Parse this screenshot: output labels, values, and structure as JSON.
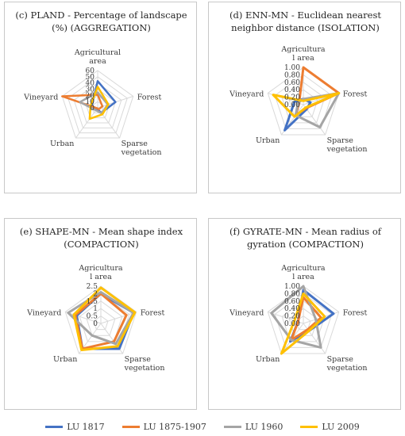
{
  "legend": [
    {
      "label": "LU 1817",
      "color": "#4472c4"
    },
    {
      "label": "LU 1875-1907",
      "color": "#ed7d31"
    },
    {
      "label": "LU 1960",
      "color": "#a5a5a5"
    },
    {
      "label": "LU 2009",
      "color": "#ffc000"
    }
  ],
  "chart_data": [
    {
      "type": "radar",
      "title": "(c) PLAND - Percentage of landscape (%) (AGGREGATION)",
      "categories": [
        "Agricultural area",
        "Forest",
        "Sparse vegetation",
        "Urban",
        "Vineyard"
      ],
      "tick_labels": [
        "0",
        "10",
        "20",
        "30",
        "40",
        "50",
        "60"
      ],
      "rmax": 60,
      "series": [
        {
          "name": "LU 1817",
          "values": [
            43,
            30,
            10,
            2,
            10
          ]
        },
        {
          "name": "LU 1875-1907",
          "values": [
            21,
            8,
            3,
            1,
            66
          ]
        },
        {
          "name": "LU 1960",
          "values": [
            25,
            17,
            11,
            5,
            30
          ]
        },
        {
          "name": "LU 2009",
          "values": [
            34,
            18,
            13,
            22,
            12
          ]
        }
      ]
    },
    {
      "type": "radar",
      "title": "(d) ENN-MN - Euclidean nearest neighbor distance (ISOLATION)",
      "categories": [
        "Agricultura l area",
        "Forest",
        "Sparse vegetation",
        "Urban",
        "Vineyard"
      ],
      "tick_labels": [
        "0.00",
        "0.20",
        "0.40",
        "0.60",
        "0.80",
        "1.00"
      ],
      "rmax": 1.0,
      "series": [
        {
          "name": "LU 1817",
          "values": [
            0.15,
            0.2,
            0.15,
            0.85,
            0.25
          ]
        },
        {
          "name": "LU 1875-1907",
          "values": [
            1.0,
            1.0,
            0.12,
            0.35,
            0.12
          ]
        },
        {
          "name": "LU 1960",
          "values": [
            0.15,
            1.0,
            0.75,
            0.35,
            0.15
          ]
        },
        {
          "name": "LU 2009",
          "values": [
            0.1,
            1.0,
            0.1,
            0.4,
            0.85
          ]
        }
      ]
    },
    {
      "type": "radar",
      "title": "(e) SHAPE-MN - Mean shape index (COMPACTION)",
      "categories": [
        "Agricultura l area",
        "Forest",
        "Sparse vegetation",
        "Urban",
        "Vineyard"
      ],
      "tick_labels": [
        "0",
        "0.5",
        "1",
        "1.5",
        "2",
        "2.5"
      ],
      "rmax": 2.5,
      "series": [
        {
          "name": "LU 1817",
          "values": [
            2.0,
            2.3,
            2.1,
            2.1,
            1.7
          ]
        },
        {
          "name": "LU 1875-1907",
          "values": [
            2.0,
            1.8,
            1.5,
            2.1,
            1.8
          ]
        },
        {
          "name": "LU 1960",
          "values": [
            2.1,
            2.3,
            1.7,
            1.0,
            2.3
          ]
        },
        {
          "name": "LU 2009",
          "values": [
            2.4,
            2.4,
            1.9,
            2.2,
            1.9
          ]
        }
      ]
    },
    {
      "type": "radar",
      "title": "(f) GYRATE-MN - Mean radius of gyration (COMPACTION)",
      "categories": [
        "Agricultura l area",
        "Forest",
        "Sparse vegetation",
        "Urban",
        "Vineyard"
      ],
      "tick_labels": [
        "0.00",
        "0.20",
        "0.40",
        "0.60",
        "0.80",
        "1.00"
      ],
      "rmax": 1.0,
      "series": [
        {
          "name": "LU 1817",
          "values": [
            0.9,
            0.85,
            0.25,
            0.6,
            0.15
          ]
        },
        {
          "name": "LU 1875-1907",
          "values": [
            0.7,
            0.5,
            0.2,
            0.55,
            0.15
          ]
        },
        {
          "name": "LU 1960",
          "values": [
            1.0,
            0.35,
            0.8,
            0.55,
            0.9
          ]
        },
        {
          "name": "LU 2009",
          "values": [
            0.8,
            0.6,
            0.25,
            1.0,
            0.25
          ]
        }
      ]
    }
  ]
}
